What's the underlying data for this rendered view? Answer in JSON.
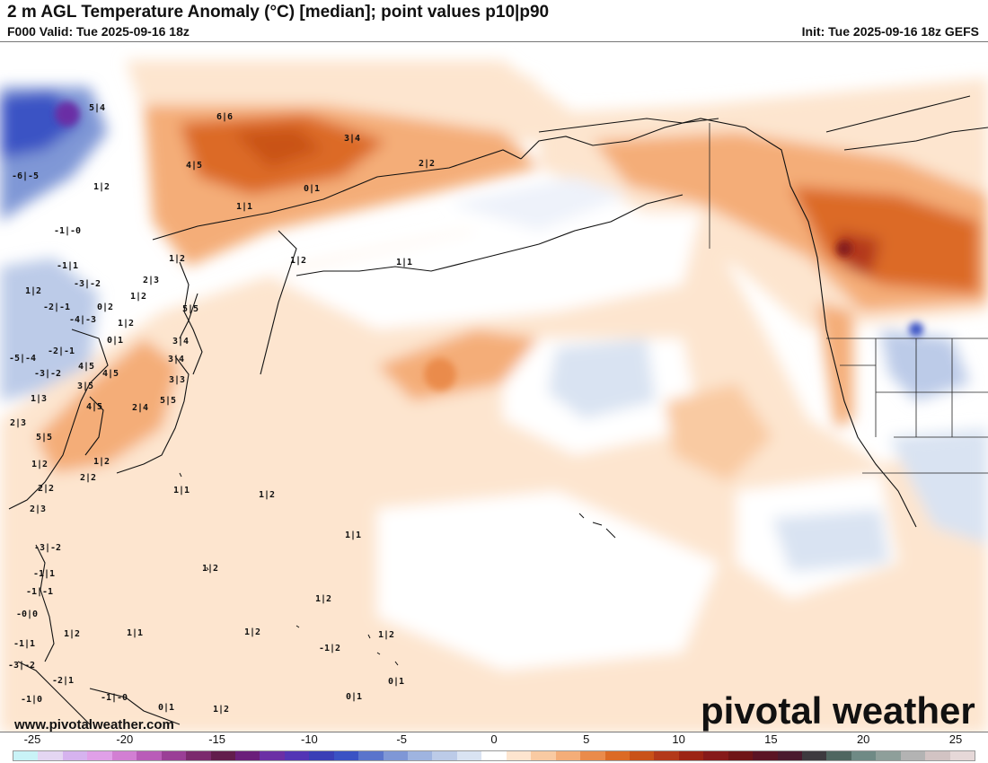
{
  "header": {
    "title": "2 m AGL Temperature Anomaly (°C) [median]; point values p10|p90",
    "valid": "F000 Valid: Tue 2025-09-16 18z",
    "init": "Init: Tue 2025-09-16 18z GEFS"
  },
  "footer": {
    "website": "www.pivotalweather.com",
    "brand": "pivotal weather"
  },
  "colorbar": {
    "tick_labels": [
      "-25",
      "-20",
      "-15",
      "-10",
      "-5",
      "0",
      "5",
      "10",
      "15",
      "20",
      "25"
    ],
    "colors": [
      "#c9f3f7",
      "#e4d6f2",
      "#d6b3ef",
      "#e0a0e8",
      "#d27fd3",
      "#b95cb8",
      "#9a3f96",
      "#7b2a6d",
      "#621d4c",
      "#6a1f7a",
      "#6b2fa5",
      "#5335b5",
      "#3a3fb6",
      "#3a52c4",
      "#5a74cc",
      "#7f97d6",
      "#9fb4e0",
      "#bccbe8",
      "#d9e3f2",
      "#ffffff",
      "#fde5cf",
      "#f9caa2",
      "#f4ad78",
      "#ea8b4b",
      "#dc6a25",
      "#c95218",
      "#b3391a",
      "#9c2414",
      "#861a1a",
      "#6f1517",
      "#5b1424",
      "#4a1a2e",
      "#3d3a3f",
      "#4f6660",
      "#6f8a85",
      "#8e9f9a",
      "#b3b3b3",
      "#d2c3c3",
      "#e6d8d8"
    ]
  },
  "point_values": [
    {
      "text": "5|4"
    },
    {
      "text": "6|6"
    },
    {
      "text": "3|4"
    },
    {
      "text": "4|5"
    },
    {
      "text": "2|2"
    },
    {
      "text": "-6|-5"
    },
    {
      "text": "1|2"
    },
    {
      "text": "0|1"
    },
    {
      "text": "1|1"
    },
    {
      "text": "-1|-0"
    },
    {
      "text": "1|2"
    },
    {
      "text": "-1|1"
    },
    {
      "text": "1|2"
    },
    {
      "text": "1|1"
    },
    {
      "text": "2|3"
    },
    {
      "text": "1|2"
    },
    {
      "text": "-3|-2"
    },
    {
      "text": "-2|-1"
    },
    {
      "text": "0|2"
    },
    {
      "text": "1|2"
    },
    {
      "text": "5|5"
    },
    {
      "text": "-4|-3"
    },
    {
      "text": "1|2"
    },
    {
      "text": "0|1"
    },
    {
      "text": "3|4"
    },
    {
      "text": "-5|-4"
    },
    {
      "text": "-2|-1"
    },
    {
      "text": "4|5"
    },
    {
      "text": "3|4"
    },
    {
      "text": "-3|-2"
    },
    {
      "text": "3|5"
    },
    {
      "text": "3|3"
    },
    {
      "text": "1|3"
    },
    {
      "text": "4|5"
    },
    {
      "text": "5|5"
    },
    {
      "text": "2|3"
    },
    {
      "text": "4|5"
    },
    {
      "text": "2|4"
    },
    {
      "text": "5|5"
    },
    {
      "text": "1|2"
    },
    {
      "text": "1|2"
    },
    {
      "text": "2|2"
    },
    {
      "text": "2|2"
    },
    {
      "text": "1|1"
    },
    {
      "text": "1|2"
    },
    {
      "text": "2|3"
    },
    {
      "text": "1|1"
    },
    {
      "text": "-3|-2"
    },
    {
      "text": "1|2"
    },
    {
      "text": "-1|1"
    },
    {
      "text": "-1|-1"
    },
    {
      "text": "1|2"
    },
    {
      "text": "-0|0"
    },
    {
      "text": "1|1"
    },
    {
      "text": "1|2"
    },
    {
      "text": "1|2"
    },
    {
      "text": "-1|1"
    },
    {
      "text": "1|2"
    },
    {
      "text": "-1|2"
    },
    {
      "text": "-3|-2"
    },
    {
      "text": "-2|1"
    },
    {
      "text": "0|1"
    },
    {
      "text": "-1|0"
    },
    {
      "text": "-1|-0"
    },
    {
      "text": "0|1"
    },
    {
      "text": "0|1"
    },
    {
      "text": "1|2"
    }
  ]
}
